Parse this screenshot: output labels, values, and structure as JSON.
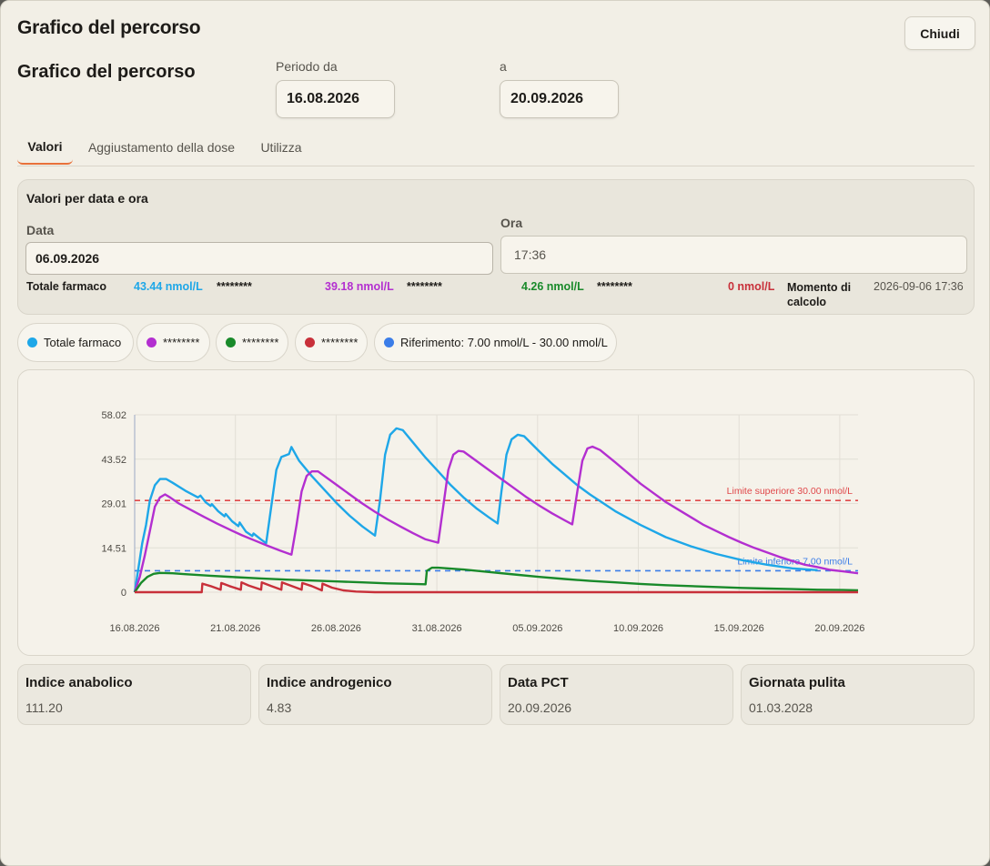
{
  "window": {
    "title": "Grafico del percorso",
    "close_label": "Chiudi"
  },
  "header": {
    "section_title": "Grafico del percorso",
    "from_label": "Periodo da",
    "from_value": "16.08.2026",
    "to_label": "a",
    "to_value": "20.09.2026"
  },
  "tabs": [
    {
      "label": "Valori",
      "active": true
    },
    {
      "label": "Aggiustamento della dose",
      "active": false
    },
    {
      "label": "Utilizza",
      "active": false
    }
  ],
  "values_panel": {
    "title": "Valori per data e ora",
    "date_label": "Data",
    "date_value": "06.09.2026",
    "time_label": "Ora",
    "time_value": "17:36",
    "total_label": "Totale farmaco",
    "readings": [
      {
        "value": "43.44 nmol/L",
        "name": "********",
        "color": "#1ea7e8"
      },
      {
        "value": "39.18 nmol/L",
        "name": "********",
        "color": "#b32fd0"
      },
      {
        "value": "4.26 nmol/L",
        "name": "********",
        "color": "#198a2a"
      },
      {
        "value": "0 nmol/L",
        "name": "",
        "color": "#c8303a"
      }
    ],
    "moment_label": "Momento di calcolo",
    "moment_value": "2026-09-06 17:36"
  },
  "legend": [
    {
      "label": "Totale farmaco",
      "color": "#1ea7e8"
    },
    {
      "label": "********",
      "color": "#b32fd0"
    },
    {
      "label": "********",
      "color": "#198a2a"
    },
    {
      "label": "********",
      "color": "#c8303a"
    },
    {
      "label": "Riferimento: 7.00 nmol/L - 30.00 nmol/L",
      "color": "#3b7de8"
    }
  ],
  "chart_data": {
    "type": "line",
    "x_ticks": [
      "16.08.2026",
      "21.08.2026",
      "26.08.2026",
      "31.08.2026",
      "05.09.2026",
      "10.09.2026",
      "15.09.2026",
      "20.09.2026"
    ],
    "y_ticks": [
      "0",
      "14.51",
      "29.01",
      "43.52",
      "58.02"
    ],
    "ylim": [
      0,
      58.02
    ],
    "xlim_days": [
      0,
      36
    ],
    "grid": true,
    "reference_lines": [
      {
        "value": 30.0,
        "label": "Limite superiore 30.00 nmol/L",
        "color": "#e0484a"
      },
      {
        "value": 7.0,
        "label": "Limite inferiore 7.00 nmol/L",
        "color": "#3b7de8"
      }
    ],
    "series": [
      {
        "name": "Totale farmaco",
        "color": "#1ea7e8",
        "points": [
          [
            0,
            0
          ],
          [
            0.3,
            8
          ],
          [
            0.6,
            16
          ],
          [
            0.9,
            22
          ],
          [
            1.2,
            30
          ],
          [
            1.6,
            35
          ],
          [
            2.0,
            37
          ],
          [
            2.5,
            37
          ],
          [
            3.0,
            35.8
          ],
          [
            4.0,
            33.2
          ],
          [
            5.0,
            31
          ],
          [
            5.2,
            31.6
          ],
          [
            5.6,
            29.5
          ],
          [
            6.0,
            28.2
          ],
          [
            6.1,
            28.8
          ],
          [
            6.6,
            26.5
          ],
          [
            7.1,
            24.8
          ],
          [
            7.2,
            25.6
          ],
          [
            7.7,
            23.2
          ],
          [
            8.2,
            21.6
          ],
          [
            8.3,
            22.8
          ],
          [
            8.8,
            19.8
          ],
          [
            9.3,
            18.4
          ],
          [
            9.4,
            19.2
          ],
          [
            10.0,
            17.2
          ],
          [
            10.4,
            16.0
          ],
          [
            10.8,
            28
          ],
          [
            11.2,
            40
          ],
          [
            11.6,
            44.2
          ],
          [
            12.2,
            45.2
          ],
          [
            12.4,
            47.5
          ],
          [
            13.0,
            43
          ],
          [
            14.0,
            38
          ],
          [
            15.0,
            33.5
          ],
          [
            16.0,
            29
          ],
          [
            17.0,
            25
          ],
          [
            18.0,
            21.5
          ],
          [
            19.0,
            18.5
          ],
          [
            19.4,
            30
          ],
          [
            19.8,
            45
          ],
          [
            20.2,
            51.5
          ],
          [
            20.7,
            53.6
          ],
          [
            21.2,
            53
          ],
          [
            22.0,
            49
          ],
          [
            23.0,
            44
          ],
          [
            24.0,
            39.5
          ],
          [
            25.0,
            35
          ],
          [
            26.0,
            31
          ],
          [
            27.0,
            27.5
          ],
          [
            28.0,
            24.5
          ],
          [
            28.7,
            22.5
          ],
          [
            29.0,
            33
          ],
          [
            29.4,
            45
          ],
          [
            29.8,
            50
          ],
          [
            30.3,
            51.5
          ],
          [
            30.8,
            51
          ],
          [
            32.0,
            46
          ],
          [
            33.0,
            42
          ],
          [
            34.0,
            38.5
          ],
          [
            35.0,
            35
          ],
          [
            36.0,
            32
          ],
          [
            38.0,
            26.5
          ],
          [
            40.0,
            22
          ],
          [
            42.0,
            18
          ],
          [
            44.0,
            15
          ],
          [
            46.0,
            12.5
          ],
          [
            48.0,
            10.5
          ],
          [
            50.0,
            9.0
          ],
          [
            52.0,
            7.8
          ],
          [
            54.0,
            7.2
          ]
        ]
      },
      {
        "name": "********",
        "color": "#b32fd0",
        "points": [
          [
            0,
            0
          ],
          [
            0.4,
            5
          ],
          [
            0.8,
            12
          ],
          [
            1.2,
            20
          ],
          [
            1.6,
            28
          ],
          [
            2.0,
            31
          ],
          [
            2.4,
            32
          ],
          [
            2.8,
            31
          ],
          [
            3.5,
            29
          ],
          [
            4.5,
            26.8
          ],
          [
            5.5,
            24.6
          ],
          [
            6.5,
            22.5
          ],
          [
            7.5,
            20.5
          ],
          [
            8.5,
            18.6
          ],
          [
            9.5,
            16.9
          ],
          [
            10.5,
            15.2
          ],
          [
            11.5,
            13.6
          ],
          [
            12.4,
            12.3
          ],
          [
            12.8,
            22
          ],
          [
            13.2,
            33
          ],
          [
            13.6,
            38
          ],
          [
            14.0,
            39.5
          ],
          [
            14.5,
            39.5
          ],
          [
            15.0,
            38
          ],
          [
            16.0,
            35
          ],
          [
            17.0,
            32
          ],
          [
            18.0,
            29
          ],
          [
            19.0,
            26.3
          ],
          [
            20.0,
            23.8
          ],
          [
            21.0,
            21.5
          ],
          [
            22.0,
            19.3
          ],
          [
            23.0,
            17.3
          ],
          [
            24.0,
            16.2
          ],
          [
            24.4,
            28
          ],
          [
            24.8,
            40
          ],
          [
            25.2,
            45
          ],
          [
            25.6,
            46.2
          ],
          [
            26.0,
            46
          ],
          [
            27.0,
            43
          ],
          [
            28.0,
            40
          ],
          [
            29.0,
            37
          ],
          [
            30.0,
            34
          ],
          [
            31.0,
            31
          ],
          [
            32.0,
            28.3
          ],
          [
            33.0,
            25.8
          ],
          [
            34.0,
            23.5
          ],
          [
            34.6,
            22.2
          ],
          [
            35.0,
            33
          ],
          [
            35.4,
            43
          ],
          [
            35.8,
            47
          ],
          [
            36.2,
            47.6
          ],
          [
            36.8,
            46.5
          ],
          [
            38.0,
            42.5
          ],
          [
            39.0,
            39
          ],
          [
            40.0,
            35.5
          ],
          [
            41.0,
            32.5
          ],
          [
            42.0,
            29.5
          ],
          [
            43.0,
            27
          ],
          [
            44.0,
            24.5
          ],
          [
            45.0,
            22
          ],
          [
            46.0,
            20
          ],
          [
            47.0,
            18
          ],
          [
            48.0,
            16.2
          ],
          [
            49.0,
            14.5
          ],
          [
            50.0,
            13
          ],
          [
            51.0,
            11.5
          ],
          [
            52.0,
            10.2
          ],
          [
            53.0,
            9.0
          ],
          [
            54.0,
            8.2
          ],
          [
            55.0,
            7.3
          ],
          [
            56.0,
            6.8
          ],
          [
            57.2,
            6.2
          ]
        ]
      },
      {
        "name": "********",
        "color": "#198a2a",
        "points": [
          [
            0,
            0
          ],
          [
            0.5,
            3
          ],
          [
            1.0,
            5
          ],
          [
            1.5,
            6
          ],
          [
            2.0,
            6.3
          ],
          [
            3.0,
            6.2
          ],
          [
            4.0,
            5.9
          ],
          [
            6.0,
            5.4
          ],
          [
            8.0,
            4.9
          ],
          [
            10.0,
            4.5
          ],
          [
            12.0,
            4.1
          ],
          [
            14.0,
            3.8
          ],
          [
            16.0,
            3.5
          ],
          [
            18.0,
            3.2
          ],
          [
            20.0,
            2.9
          ],
          [
            22.0,
            2.7
          ],
          [
            23.0,
            2.6
          ],
          [
            23.1,
            7
          ],
          [
            23.5,
            8.0
          ],
          [
            24.0,
            8.0
          ],
          [
            26.0,
            7.4
          ],
          [
            28.0,
            6.6
          ],
          [
            30.0,
            5.8
          ],
          [
            32.0,
            5.0
          ],
          [
            34.0,
            4.3
          ],
          [
            36.0,
            3.7
          ],
          [
            38.0,
            3.2
          ],
          [
            40.0,
            2.7
          ],
          [
            42.0,
            2.3
          ],
          [
            44.0,
            2.0
          ],
          [
            46.0,
            1.7
          ],
          [
            48.0,
            1.4
          ],
          [
            50.0,
            1.2
          ],
          [
            52.0,
            1.0
          ],
          [
            54.0,
            0.8
          ],
          [
            56.0,
            0.7
          ],
          [
            57.2,
            0.6
          ]
        ]
      },
      {
        "name": "********",
        "color": "#c8303a",
        "points": [
          [
            0,
            0
          ],
          [
            5.3,
            0
          ],
          [
            5.35,
            2.8
          ],
          [
            6.0,
            2.0
          ],
          [
            6.8,
            0.8
          ],
          [
            6.85,
            3.0
          ],
          [
            7.5,
            2.0
          ],
          [
            8.4,
            0.8
          ],
          [
            8.45,
            3.2
          ],
          [
            9.0,
            2.2
          ],
          [
            10.0,
            0.8
          ],
          [
            10.05,
            3.2
          ],
          [
            10.8,
            2.0
          ],
          [
            11.6,
            0.8
          ],
          [
            11.65,
            3.2
          ],
          [
            12.3,
            2.2
          ],
          [
            13.2,
            0.8
          ],
          [
            13.25,
            3.0
          ],
          [
            14.0,
            2.0
          ],
          [
            14.8,
            0.6
          ],
          [
            14.85,
            2.8
          ],
          [
            15.6,
            1.5
          ],
          [
            16.5,
            0.6
          ],
          [
            17.5,
            0.2
          ],
          [
            19.0,
            0
          ],
          [
            57.2,
            0
          ]
        ]
      }
    ]
  },
  "stats": [
    {
      "title": "Indice anabolico",
      "value": "111.20"
    },
    {
      "title": "Indice androgenico",
      "value": "4.83"
    },
    {
      "title": "Data PCT",
      "value": "20.09.2026"
    },
    {
      "title": "Giornata pulita",
      "value": "01.03.2028"
    }
  ]
}
